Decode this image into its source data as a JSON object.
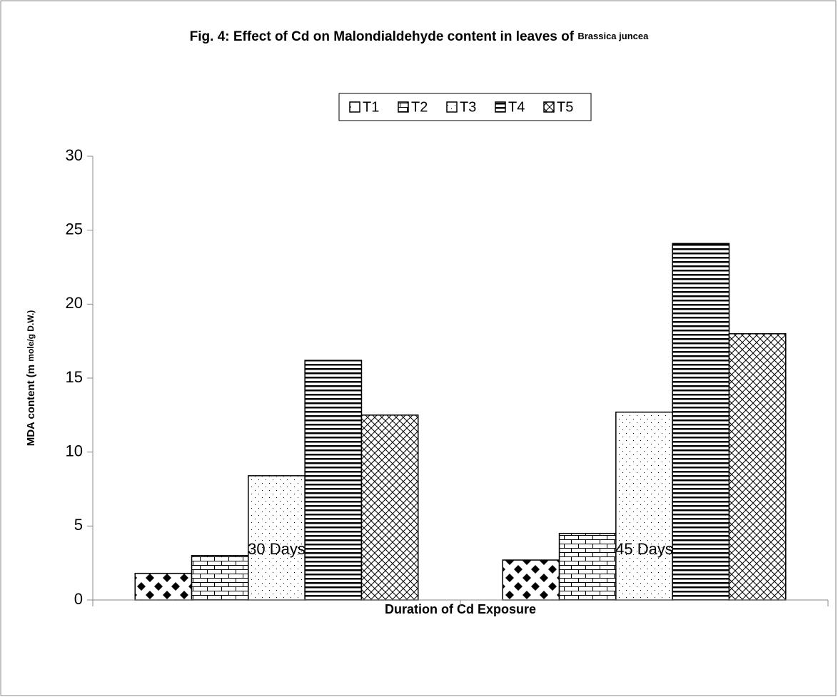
{
  "chart_data": {
    "type": "bar",
    "title": "Fig. 4: Effect of Cd on Malondialdehyde content in leaves of",
    "title_species": "Brassica juncea",
    "ylabel": "MDA content  (m",
    "ylabel_unit": "mole/g D.W.)",
    "xlabel": "Duration of Cd Exposure",
    "categories": [
      "30 Days",
      "45 Days"
    ],
    "series": [
      {
        "name": "T1",
        "pattern": "diamonds",
        "values": [
          1.8,
          2.7
        ]
      },
      {
        "name": "T2",
        "pattern": "brick",
        "values": [
          3.0,
          4.5
        ]
      },
      {
        "name": "T3",
        "pattern": "dots",
        "values": [
          8.4,
          12.7
        ]
      },
      {
        "name": "T4",
        "pattern": "hlines",
        "values": [
          16.2,
          24.1
        ]
      },
      {
        "name": "T5",
        "pattern": "crosshatch",
        "values": [
          12.5,
          18.0
        ]
      }
    ],
    "ylim": [
      0,
      30
    ],
    "yticks": [
      0,
      5,
      10,
      15,
      20,
      25,
      30
    ],
    "legend": "top",
    "grid": false
  }
}
